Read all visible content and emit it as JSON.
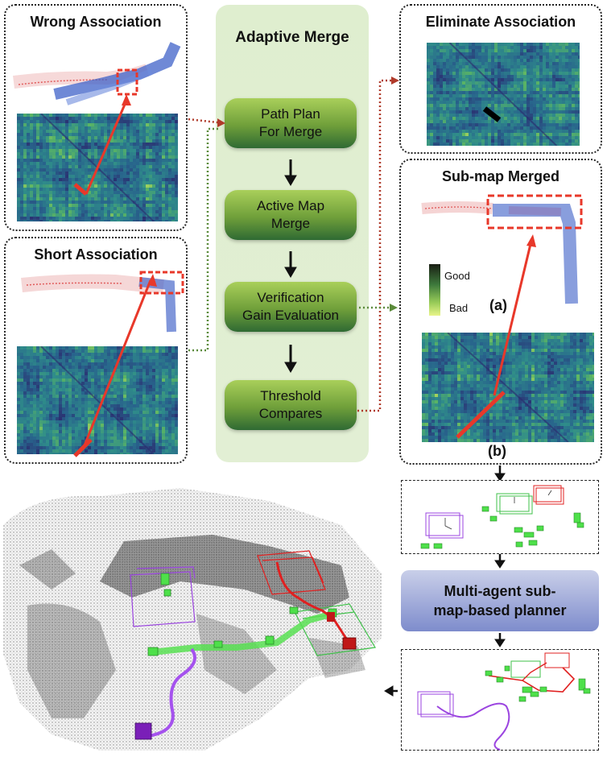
{
  "panels": {
    "wrong": {
      "title": "Wrong Association"
    },
    "short": {
      "title": "Short Association"
    },
    "eliminate": {
      "title": "Eliminate Association"
    },
    "merged": {
      "title": "Sub-map Merged"
    }
  },
  "adaptive_merge": {
    "title": "Adaptive Merge",
    "steps": [
      "Path Plan\nFor Merge",
      "Active Map\nMerge",
      "Verification\nGain Evaluation",
      "Threshold\nCompares"
    ]
  },
  "legend": {
    "good": "Good",
    "bad": "Bad"
  },
  "labels": {
    "a": "(a)",
    "b": "(b)"
  },
  "planner": {
    "label": "Multi-agent sub-\nmap-based planner"
  },
  "colors": {
    "heat_dark": "#2b2a6e",
    "heat_mid": "#2f8c8a",
    "heat_light": "#d9e85a",
    "arrow_red": "#e8382a",
    "merge_bg": "#e0eed2",
    "step_green": "#6f9f3a",
    "planner_blue": "#8e99d2",
    "agent_red": "#e02020",
    "agent_green": "#3fe04a",
    "agent_purple": "#9b45e0"
  }
}
